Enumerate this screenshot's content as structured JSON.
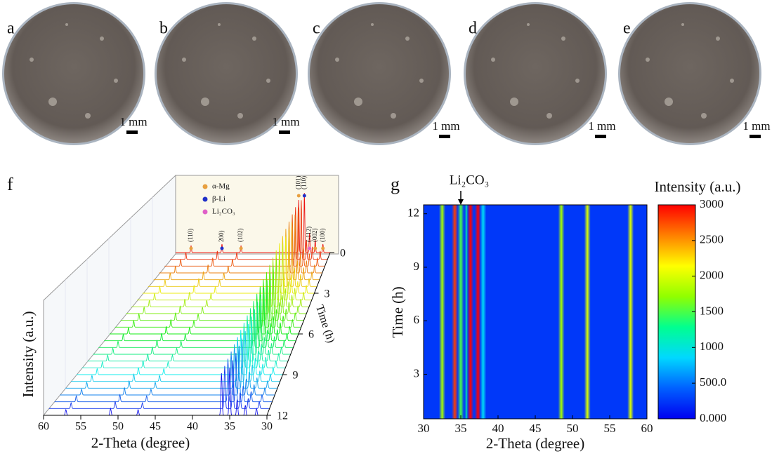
{
  "photos": [
    {
      "label": "a",
      "scale": "1 mm"
    },
    {
      "label": "b",
      "scale": "1 mm"
    },
    {
      "label": "c",
      "scale": "1 mm"
    },
    {
      "label": "d",
      "scale": "1 mm"
    },
    {
      "label": "e",
      "scale": "1 mm"
    }
  ],
  "chart_data": [
    {
      "type": "waterfall",
      "label": "f",
      "x_label": "2-Theta (degree)",
      "y_label": "Intensity (a.u.)",
      "z_label": "Time (h)",
      "xlim": [
        60,
        30
      ],
      "xticks": [
        60,
        55,
        50,
        45,
        40,
        35,
        30
      ],
      "zlim": [
        0,
        12
      ],
      "zticks": [
        0,
        3,
        6,
        9,
        12
      ],
      "times": [
        0,
        0.5,
        1,
        1.5,
        2,
        2.5,
        3,
        3.5,
        4,
        4.5,
        5,
        5.5,
        6,
        6.5,
        7,
        7.5,
        8,
        8.5,
        9,
        9.5,
        10,
        10.5,
        11,
        11.5,
        12
      ],
      "legend": [
        {
          "name": "α-Mg",
          "color": "#e8a040"
        },
        {
          "name": "β-Li",
          "color": "#2030c8"
        },
        {
          "name": "Li₂CO₃",
          "color": "#e060c8"
        }
      ],
      "peaks": [
        {
          "label": "(110)",
          "x": 57,
          "height": 10,
          "phase": 0
        },
        {
          "label": "200)",
          "x": 51,
          "height": 12,
          "phase": 1
        },
        {
          "label": "(102)",
          "x": 47.3,
          "height": 10,
          "phase": 0
        },
        {
          "label": "(101)",
          "x": 36.1,
          "height": 75,
          "phase": 0
        },
        {
          "label": "(110)",
          "x": 35,
          "height": 85,
          "phase": 1
        },
        {
          "label": "(-112)",
          "x": 34,
          "height": 28,
          "phase": 2
        },
        {
          "label": "(002)",
          "x": 32.9,
          "height": 18,
          "phase": 0
        },
        {
          "label": "(100)",
          "x": 31.4,
          "height": 12,
          "phase": 0
        }
      ]
    },
    {
      "type": "heatmap",
      "label": "g",
      "x_label": "2-Theta (degree)",
      "y_label": "Time (h)",
      "colorbar_title": "Intensity (a.u.)",
      "annotation": "Li₂CO₃",
      "annotation_x": 35,
      "xlim": [
        30,
        60
      ],
      "xticks": [
        30,
        35,
        40,
        45,
        50,
        55,
        60
      ],
      "ylim": [
        0.5,
        12.5
      ],
      "yticks": [
        3,
        6,
        9,
        12
      ],
      "clim": [
        0,
        3000
      ],
      "cticks": [
        {
          "value": 0,
          "label": "0.000"
        },
        {
          "value": 500,
          "label": "500.0"
        },
        1000,
        1500,
        2000,
        2500,
        3000
      ],
      "colorscale": [
        "#0000f0",
        "#0060ff",
        "#00d8ff",
        "#00ff90",
        "#90ff00",
        "#ffff00",
        "#ff8000",
        "#ff0000"
      ],
      "background_intensity": 250,
      "peaks_2theta": [
        32.5,
        34.2,
        35.0,
        35.9,
        36.3,
        37.3,
        38.0,
        48.5,
        52.0,
        57.8
      ],
      "peak_intensity": [
        1800,
        2800,
        1500,
        1200,
        3000,
        3000,
        900,
        1800,
        2000,
        2000
      ]
    }
  ]
}
